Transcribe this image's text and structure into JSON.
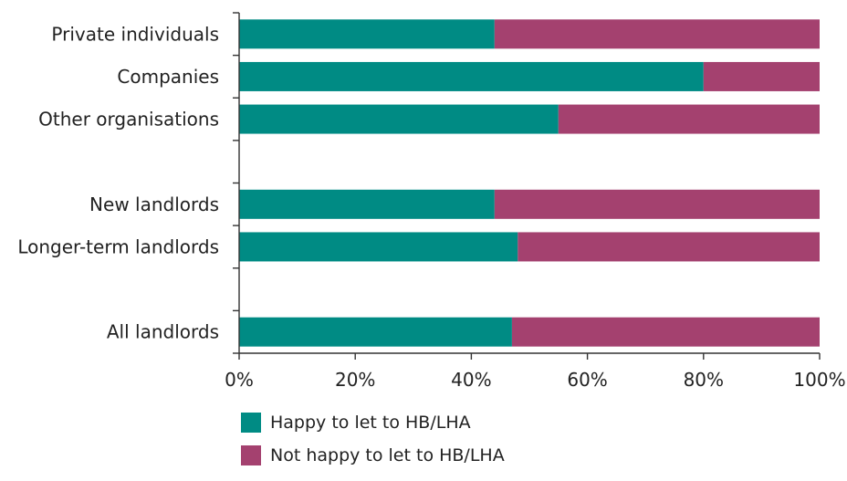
{
  "chart_data": {
    "type": "bar",
    "orientation": "horizontal",
    "stacked": true,
    "title": "",
    "xlabel": "",
    "ylabel": "",
    "xlim": [
      0,
      100
    ],
    "x_ticks": [
      "0%",
      "20%",
      "40%",
      "60%",
      "80%",
      "100%"
    ],
    "x_tick_values": [
      0,
      20,
      40,
      60,
      80,
      100
    ],
    "grid": false,
    "legend_position": "bottom",
    "slots": [
      "Private individuals",
      "Companies",
      "Other organisations",
      "",
      "New landlords",
      "Longer-term landlords",
      "",
      "All landlords"
    ],
    "categories": [
      "Private individuals",
      "Companies",
      "Other organisations",
      "New landlords",
      "Longer-term landlords",
      "All landlords"
    ],
    "series": [
      {
        "name": "Happy to let to HB/LHA",
        "color": "#008b84",
        "values": [
          44,
          80,
          55,
          44,
          48,
          47
        ]
      },
      {
        "name": "Not happy to let to HB/LHA",
        "color": "#a4416f",
        "values": [
          56,
          20,
          45,
          56,
          52,
          53
        ]
      }
    ]
  }
}
